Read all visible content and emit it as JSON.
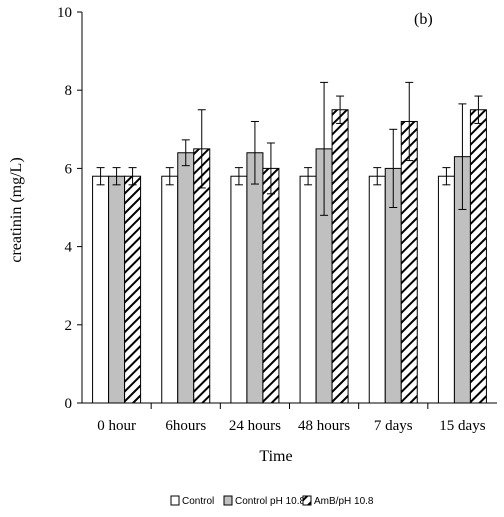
{
  "chart_data": {
    "type": "bar",
    "annotation": "(b)",
    "xlabel": "Time",
    "ylabel": "creatinin (mg/L)",
    "ylim": [
      0,
      10
    ],
    "yticks": [
      0,
      2,
      4,
      6,
      8,
      10
    ],
    "grid": false,
    "legend_position": "bottom",
    "categories": [
      "0 hour",
      "6hours",
      "24 hours",
      "48 hours",
      "7 days",
      "15 days"
    ],
    "series": [
      {
        "name": "Control",
        "fill": "white",
        "values": [
          5.8,
          5.8,
          5.8,
          5.8,
          5.8,
          5.8
        ],
        "errors": [
          0.22,
          0.22,
          0.22,
          0.22,
          0.22,
          0.22
        ]
      },
      {
        "name": "Control pH 10.8",
        "fill": "gray",
        "values": [
          5.8,
          6.4,
          6.4,
          6.5,
          6.0,
          6.3
        ],
        "errors": [
          0.22,
          0.33,
          0.8,
          1.7,
          1.0,
          1.35
        ]
      },
      {
        "name": "AmB/pH 10.8",
        "fill": "hatched",
        "values": [
          5.8,
          6.5,
          6.0,
          7.5,
          7.2,
          7.5
        ],
        "errors": [
          0.22,
          1.0,
          0.65,
          0.35,
          1.0,
          0.35
        ]
      }
    ]
  },
  "colors": {
    "control": "#ffffff",
    "control_ph": "#c0c0c0",
    "hatch": "#000000",
    "axis": "#000000"
  }
}
